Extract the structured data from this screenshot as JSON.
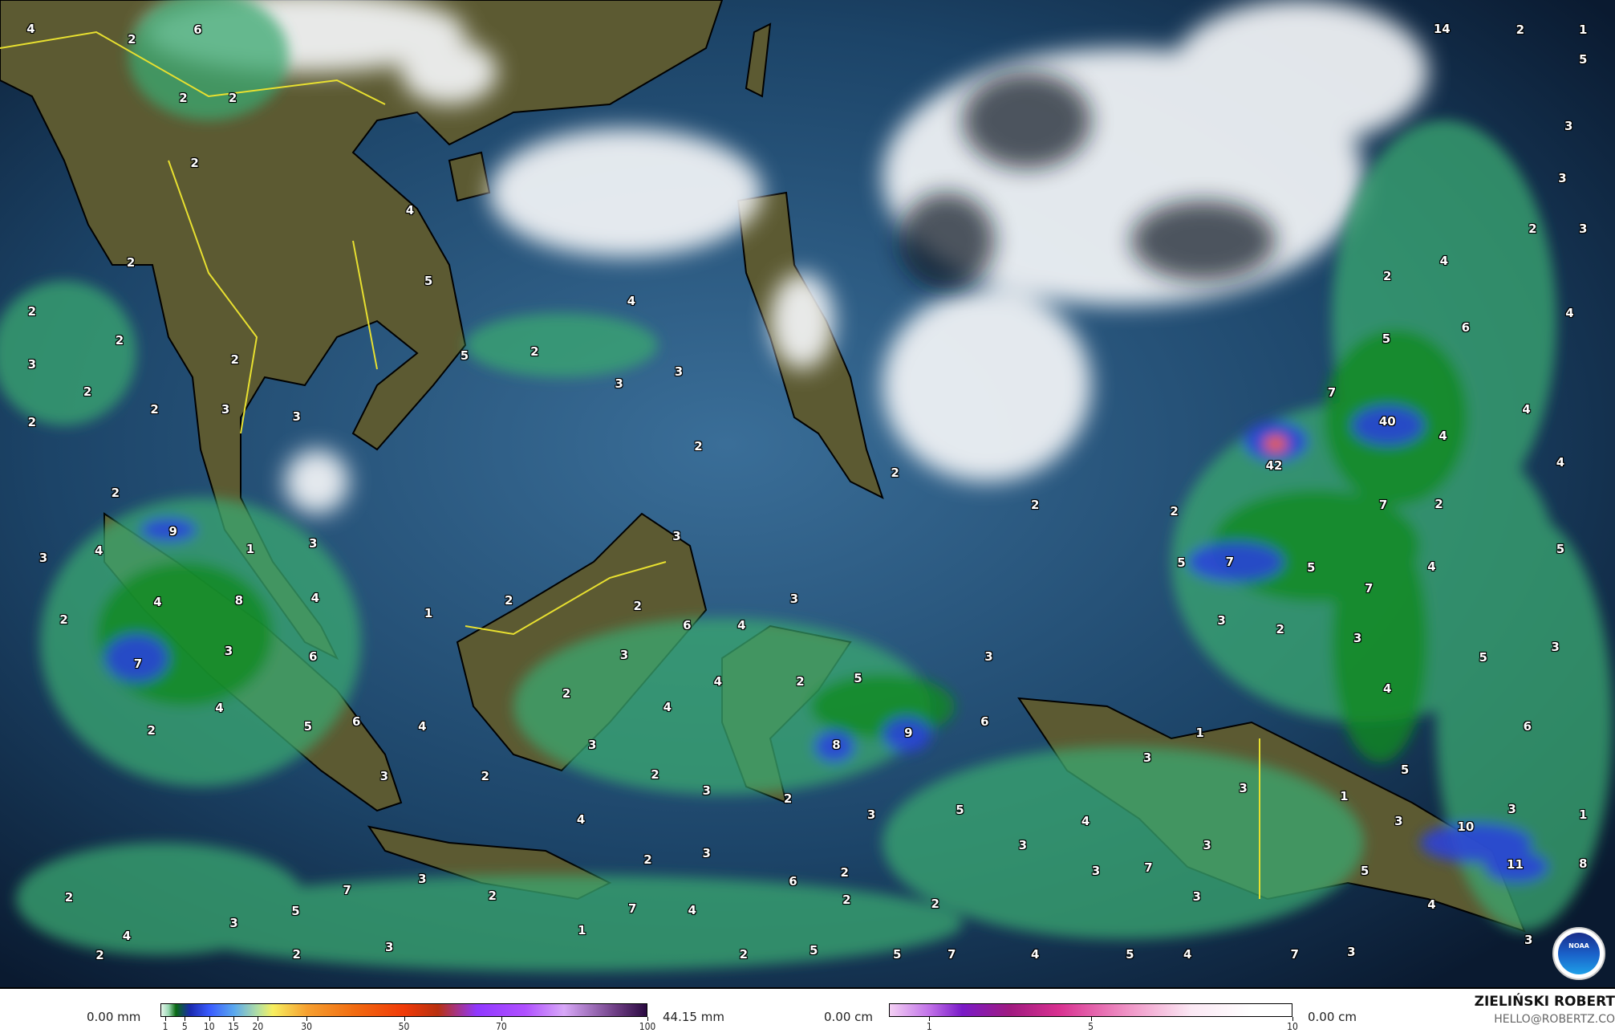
{
  "map": {
    "type": "precipitation and cloud cover forecast map",
    "region": "Southeast Asia / Maritime Continent",
    "colors": {
      "ocean": "#12304f",
      "land": "#5a5a30",
      "cloud": "#ffffff",
      "rain_light": "#3aa860",
      "rain_mod": "#0a7a1a",
      "rain_heavy": "#2a3cd8",
      "border_country": "#e8e030",
      "border_province": "#c8c8c8"
    },
    "precip_labels": [
      "4",
      "2",
      "6",
      "2",
      "2",
      "2",
      "2",
      "4",
      "5",
      "4",
      "5",
      "2",
      "3",
      "3",
      "2",
      "2",
      "3",
      "2",
      "2",
      "2",
      "2",
      "3",
      "3",
      "2",
      "2",
      "2",
      "2",
      "42",
      "40",
      "7",
      "4",
      "7",
      "2",
      "5",
      "7",
      "5",
      "7",
      "4",
      "5",
      "3",
      "2",
      "3",
      "5",
      "3",
      "4",
      "14",
      "2",
      "1",
      "5",
      "3",
      "3",
      "2",
      "3",
      "4",
      "2",
      "4",
      "5",
      "6",
      "4",
      "4",
      "2",
      "9",
      "4",
      "3",
      "1",
      "3",
      "4",
      "8",
      "4",
      "2",
      "7",
      "3",
      "6",
      "4",
      "2",
      "5",
      "6",
      "4",
      "3",
      "2",
      "3",
      "2",
      "1",
      "4",
      "3",
      "6",
      "2",
      "3",
      "4",
      "4",
      "2",
      "3",
      "2",
      "3",
      "2",
      "5",
      "3",
      "9",
      "8",
      "6",
      "2",
      "3",
      "5",
      "1",
      "3",
      "3",
      "1",
      "5",
      "6",
      "3",
      "10",
      "11",
      "1",
      "8",
      "3",
      "3",
      "7",
      "3",
      "4",
      "3",
      "3",
      "5",
      "4",
      "4",
      "2",
      "3",
      "7",
      "3",
      "5",
      "3",
      "4",
      "2",
      "3",
      "2",
      "2",
      "7",
      "4",
      "1",
      "6",
      "2",
      "2",
      "2",
      "2",
      "5",
      "5",
      "7",
      "4",
      "5",
      "4",
      "7",
      "3",
      "3",
      "2"
    ]
  },
  "legend": {
    "rain": {
      "min_label": "0.00 mm",
      "max_label": "44.15 mm",
      "ticks": [
        "1",
        "5",
        "10",
        "15",
        "20",
        "30",
        "50",
        "70",
        "100"
      ]
    },
    "snow": {
      "min_label": "0.00 cm",
      "max_label": "0.00 cm",
      "ticks": [
        "1",
        "5",
        "10"
      ]
    }
  },
  "author": {
    "name": "ZIELIŃSKI ROBERT",
    "email": "HELLO@ROBERTZ.CO"
  },
  "logo": {
    "text": "NOAA"
  }
}
